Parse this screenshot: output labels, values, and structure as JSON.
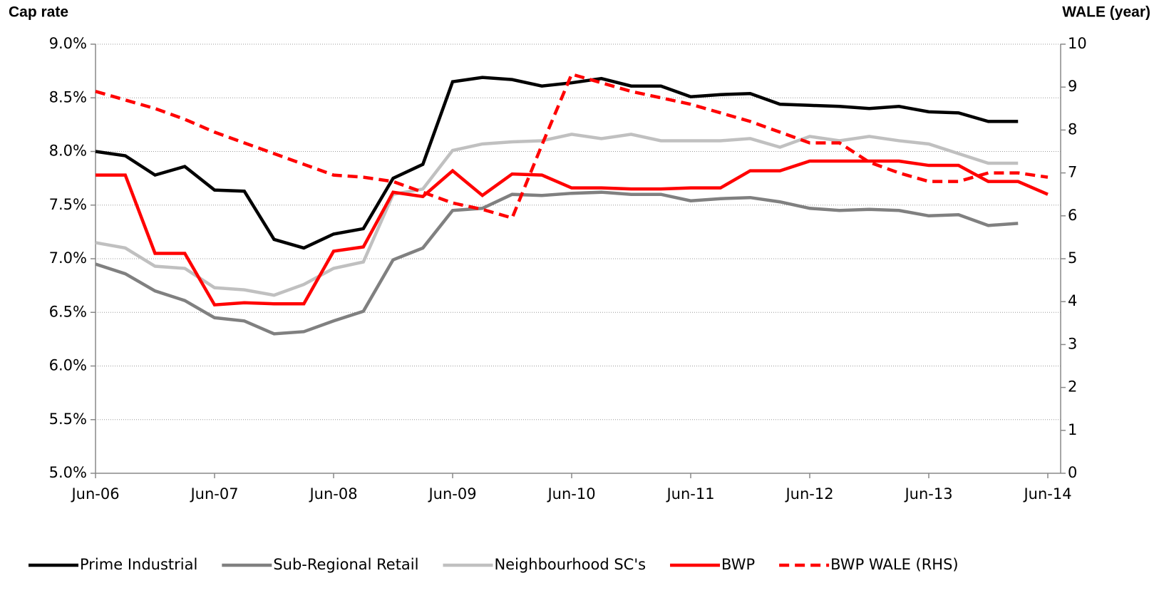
{
  "chart_data": {
    "type": "line",
    "y_label": "Cap rate",
    "y2_label": "WALE (year)",
    "categories": [
      "Jun-06",
      null,
      null,
      null,
      "Jun-07",
      null,
      null,
      null,
      "Jun-08",
      null,
      null,
      null,
      "Jun-09",
      null,
      null,
      null,
      "Jun-10",
      null,
      null,
      null,
      "Jun-11",
      null,
      null,
      null,
      "Jun-12",
      null,
      null,
      null,
      "Jun-13",
      null,
      null,
      null,
      "Jun-14"
    ],
    "ylim": [
      5.0,
      9.0
    ],
    "yticks": [
      {
        "value": 5.0,
        "label": "5.0%"
      },
      {
        "value": 5.5,
        "label": "5.5%"
      },
      {
        "value": 6.0,
        "label": "6.0%"
      },
      {
        "value": 6.5,
        "label": "6.5%"
      },
      {
        "value": 7.0,
        "label": "7.0%"
      },
      {
        "value": 7.5,
        "label": "7.5%"
      },
      {
        "value": 8.0,
        "label": "8.0%"
      },
      {
        "value": 8.5,
        "label": "8.5%"
      },
      {
        "value": 9.0,
        "label": "9.0%"
      }
    ],
    "y2lim": [
      0,
      10
    ],
    "y2ticks": [
      0,
      1,
      2,
      3,
      4,
      5,
      6,
      7,
      8,
      9,
      10
    ],
    "grid": true,
    "legend": "bottom",
    "series": [
      {
        "name": "Prime Industrial",
        "color": "#000000",
        "values": [
          8.0,
          7.96,
          7.78,
          7.86,
          7.64,
          7.63,
          7.18,
          7.1,
          7.23,
          7.28,
          7.75,
          7.88,
          8.65,
          8.69,
          8.67,
          8.61,
          8.64,
          8.68,
          8.61,
          8.61,
          8.51,
          8.53,
          8.54,
          8.44,
          8.43,
          8.42,
          8.4,
          8.42,
          8.37,
          8.36,
          8.28,
          8.28,
          null
        ]
      },
      {
        "name": "Sub-Regional Retail",
        "color": "#808080",
        "values": [
          6.95,
          6.86,
          6.7,
          6.61,
          6.45,
          6.42,
          6.3,
          6.32,
          6.42,
          6.51,
          6.99,
          7.1,
          7.45,
          7.47,
          7.6,
          7.59,
          7.61,
          7.62,
          7.6,
          7.6,
          7.54,
          7.56,
          7.57,
          7.53,
          7.47,
          7.45,
          7.46,
          7.45,
          7.4,
          7.41,
          7.31,
          7.33,
          null
        ]
      },
      {
        "name": "Neighbourhood SC's",
        "color": "#c0c0c0",
        "values": [
          7.15,
          7.1,
          6.93,
          6.91,
          6.73,
          6.71,
          6.66,
          6.76,
          6.91,
          6.97,
          7.6,
          7.65,
          8.01,
          8.07,
          8.09,
          8.1,
          8.16,
          8.12,
          8.16,
          8.1,
          8.1,
          8.1,
          8.12,
          8.04,
          8.14,
          8.1,
          8.14,
          8.1,
          8.07,
          7.98,
          7.89,
          7.89,
          null
        ]
      },
      {
        "name": "BWP",
        "color": "#ff0000",
        "values": [
          7.78,
          7.78,
          7.05,
          7.05,
          6.57,
          6.59,
          6.58,
          6.58,
          7.07,
          7.11,
          7.62,
          7.58,
          7.82,
          7.59,
          7.79,
          7.78,
          7.66,
          7.66,
          7.65,
          7.65,
          7.66,
          7.66,
          7.82,
          7.82,
          7.91,
          7.91,
          7.91,
          7.91,
          7.87,
          7.87,
          7.72,
          7.72,
          7.6
        ]
      },
      {
        "name": "BWP WALE (RHS)",
        "color": "#ff0000",
        "linestyle": "dashed",
        "axis": "y2",
        "values": [
          8.9,
          8.7,
          8.5,
          8.25,
          7.95,
          7.7,
          7.45,
          7.2,
          6.95,
          6.9,
          6.8,
          6.55,
          6.3,
          6.15,
          5.95,
          7.65,
          9.3,
          9.1,
          8.9,
          8.75,
          8.6,
          8.4,
          8.2,
          7.95,
          7.7,
          7.7,
          7.25,
          7.0,
          6.8,
          6.8,
          7.0,
          7.0,
          6.9
        ]
      }
    ]
  }
}
